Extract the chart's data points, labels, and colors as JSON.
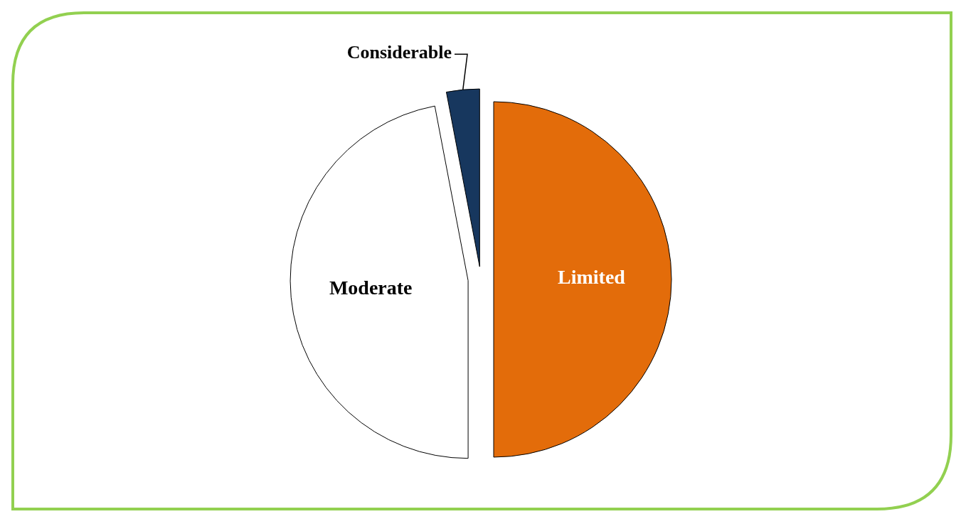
{
  "chart_data": {
    "type": "pie",
    "categories": [
      "Limited",
      "Moderate",
      "Considerable"
    ],
    "values": [
      50,
      47,
      3
    ],
    "colors": [
      "#e36c0a",
      "#ffffff",
      "#17375e"
    ]
  }
}
